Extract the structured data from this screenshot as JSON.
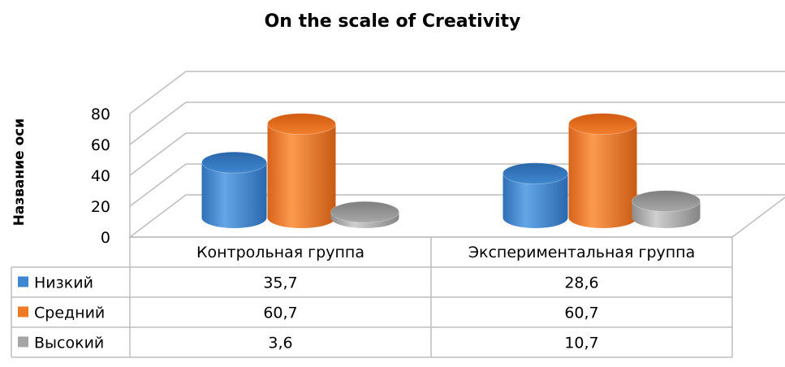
{
  "chart_data": {
    "type": "bar",
    "title": "On the scale of Creativity",
    "ylabel": "Название оси",
    "xlabel": "",
    "ylim": [
      0,
      80
    ],
    "yticks": [
      "0",
      "20",
      "40",
      "60",
      "80"
    ],
    "categories": [
      "Контрольная группа",
      "Экспериментальная группа"
    ],
    "series": [
      {
        "name": "Низкий",
        "values": [
          35.7,
          28.6
        ],
        "labels": [
          "35,7",
          "28,6"
        ],
        "color": "#3d86d0"
      },
      {
        "name": "Средний",
        "values": [
          60.7,
          60.7
        ],
        "labels": [
          "60,7",
          "60,7"
        ],
        "color": "#ee7a26"
      },
      {
        "name": "Высокий",
        "values": [
          3.6,
          10.7
        ],
        "labels": [
          "3,6",
          "10,7"
        ],
        "color": "#a5a5a5"
      }
    ],
    "bar_shape": "cylinder",
    "legend": "data-table",
    "grid": true
  }
}
